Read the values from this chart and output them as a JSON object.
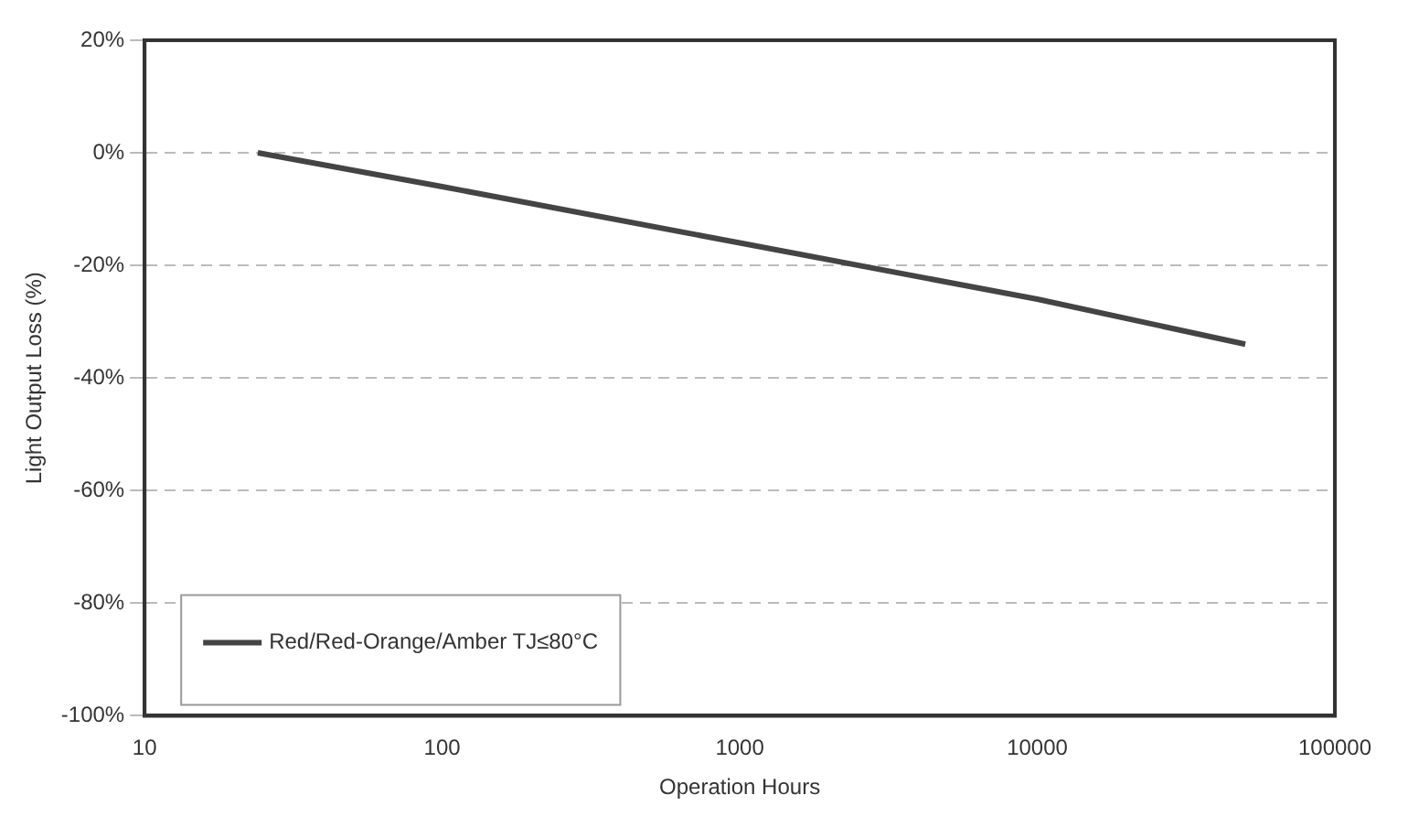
{
  "chart_data": {
    "type": "line",
    "xlabel": "Operation Hours",
    "ylabel": "Light Output Loss (%)",
    "log": "x",
    "xlim": [
      10,
      100000
    ],
    "xticks": [
      10,
      100,
      {
        "value": 1000,
        "label": "1000"
      },
      10000,
      100000
    ],
    "ylim": [
      -100,
      20
    ],
    "yticks": [
      {
        "value": 20,
        "label": "20%"
      },
      {
        "value": 0,
        "label": "0%"
      },
      {
        "value": -20,
        "label": "-20%"
      },
      {
        "value": -40,
        "label": "-40%"
      },
      {
        "value": -60,
        "label": "-60%"
      },
      {
        "value": -80,
        "label": "-80%"
      },
      {
        "value": -100,
        "label": "-100%"
      }
    ],
    "grid": "y",
    "legend": "bottom left",
    "marker": "none",
    "line_style": "solid",
    "series": [
      {
        "name": "Red/Red-Orange/Amber TJ≤80°C",
        "color": "#444444",
        "x": [
          24,
          100,
          1000,
          10000,
          50000
        ],
        "values": [
          0,
          -6,
          -16,
          -26,
          -34
        ]
      }
    ]
  }
}
